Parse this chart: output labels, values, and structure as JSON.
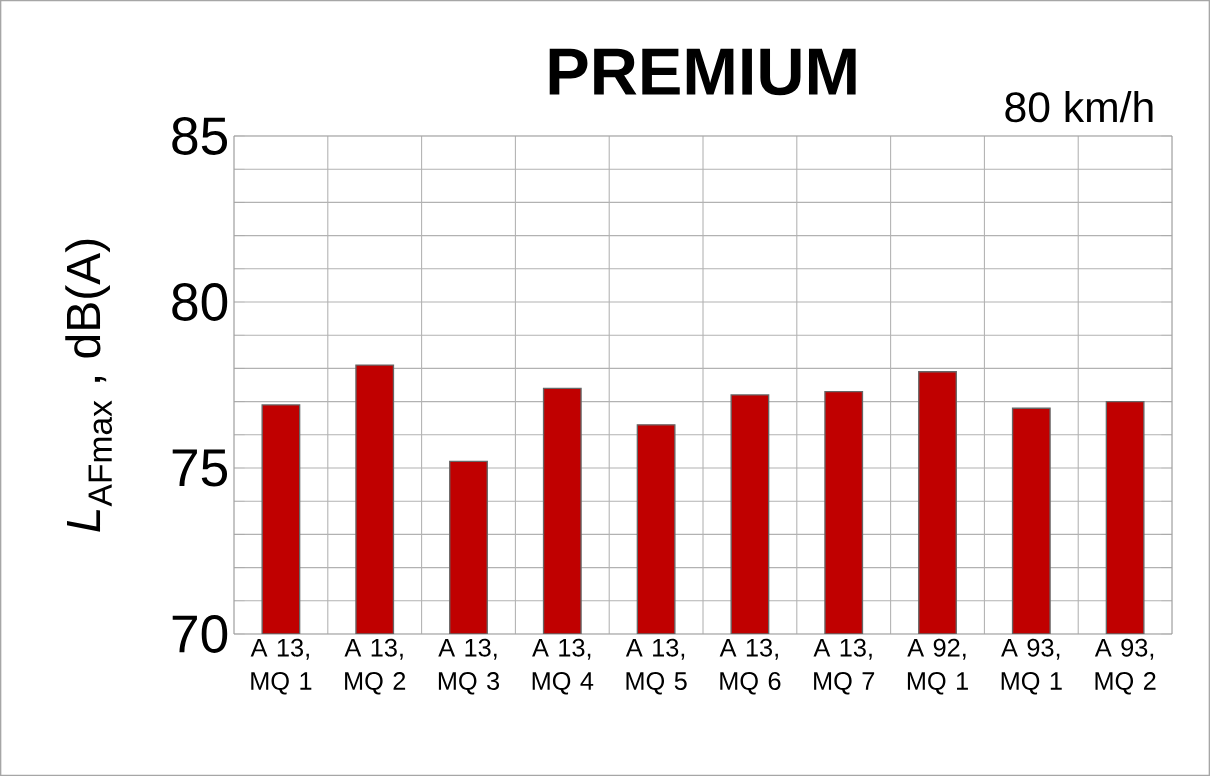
{
  "chart_data": {
    "type": "bar",
    "title": "PREMIUM",
    "annotations": [
      "80 km/h"
    ],
    "ylabel": "*L*$_{AFmax}$ , dB(A)",
    "categories": [
      "A 13, MQ 1",
      "A 13, MQ 2",
      "A 13, MQ 3",
      "A 13, MQ 4",
      "A 13, MQ 5",
      "A 13, MQ 6",
      "A 13, MQ 7",
      "A 92, MQ 1",
      "A 93, MQ 1",
      "A 93, MQ 2"
    ],
    "values": [
      76.9,
      78.1,
      75.2,
      77.4,
      76.3,
      77.2,
      77.3,
      77.9,
      76.8,
      77.0
    ],
    "color": "#c00000",
    "ylim": [
      70,
      85
    ],
    "yticks": [
      70,
      {
        "value": 71,
        "label": null
      },
      {
        "value": 72,
        "label": null
      },
      {
        "value": 73,
        "label": null
      },
      {
        "value": 74,
        "label": null
      },
      75,
      {
        "value": 76,
        "label": null
      },
      {
        "value": 77,
        "label": null
      },
      {
        "value": 78,
        "label": null
      },
      {
        "value": 79,
        "label": null
      },
      80,
      {
        "value": 81,
        "label": null
      },
      {
        "value": 82,
        "label": null
      },
      {
        "value": 83,
        "label": null
      },
      {
        "value": 84,
        "label": null
      },
      85
    ],
    "grid": true
  }
}
